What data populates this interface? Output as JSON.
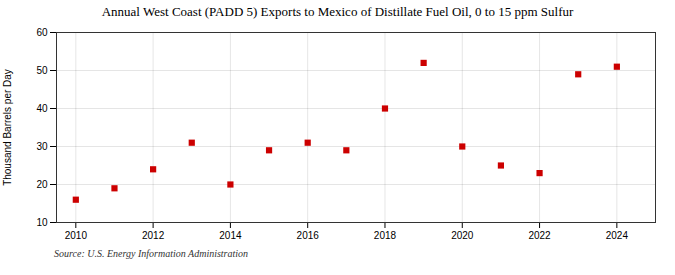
{
  "chart_data": {
    "type": "scatter",
    "title": "Annual West Coast (PADD 5) Exports to Mexico of Distillate Fuel Oil, 0 to 15 ppm Sulfur",
    "ylabel": "Thousand Barrels per Day",
    "source": "Source: U.S. Energy Information Administration",
    "x": [
      2010,
      2011,
      2012,
      2013,
      2014,
      2015,
      2016,
      2017,
      2018,
      2019,
      2020,
      2021,
      2022,
      2023,
      2024
    ],
    "values": [
      16,
      19,
      24,
      31,
      20,
      29,
      31,
      29,
      40,
      52,
      30,
      25,
      23,
      49,
      51
    ],
    "xlim": [
      2009.5,
      2025.0
    ],
    "xticks": [
      2010,
      2012,
      2014,
      2016,
      2018,
      2020,
      2022,
      2024
    ],
    "ylim": [
      10,
      60
    ],
    "yticks": [
      10,
      20,
      30,
      40,
      50,
      60
    ],
    "color": "#cc0000",
    "marker": "square",
    "grid": true
  }
}
